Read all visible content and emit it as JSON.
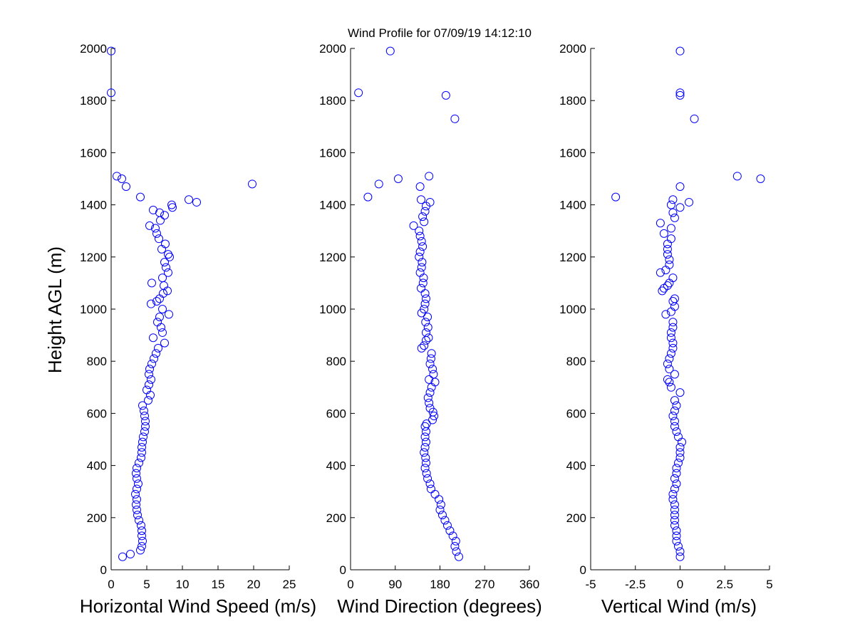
{
  "figure": {
    "title": "Wind Profile for  07/09/19 14:12:10",
    "ylabel": "Height AGL (m)",
    "marker_color": "#0000ff"
  },
  "chart_data": [
    {
      "type": "scatter",
      "id": "speed",
      "title": "Wind Profile for  07/09/19 14:12:10",
      "xlabel": "Horizontal Wind Speed (m/s)",
      "ylabel": "Height AGL (m)",
      "xlim": [
        0,
        25
      ],
      "ylim": [
        0,
        2000
      ],
      "xticks": [
        "0",
        "5",
        "10",
        "15",
        "20",
        "25"
      ],
      "xtick_values": [
        0,
        5,
        10,
        15,
        20,
        25
      ],
      "yticks": [
        "0",
        "200",
        "400",
        "600",
        "800",
        "1000",
        "1200",
        "1400",
        "1600",
        "1800",
        "2000"
      ],
      "ytick_values": [
        0,
        200,
        400,
        600,
        800,
        1000,
        1200,
        1400,
        1600,
        1800,
        2000
      ],
      "grid": false,
      "points": [
        [
          1.6,
          50
        ],
        [
          2.7,
          60
        ],
        [
          4.1,
          75
        ],
        [
          4.3,
          90
        ],
        [
          4.4,
          110
        ],
        [
          4.3,
          130
        ],
        [
          4.3,
          150
        ],
        [
          4.2,
          170
        ],
        [
          3.9,
          190
        ],
        [
          3.7,
          210
        ],
        [
          3.6,
          230
        ],
        [
          3.5,
          250
        ],
        [
          3.6,
          270
        ],
        [
          3.4,
          290
        ],
        [
          3.6,
          310
        ],
        [
          3.8,
          330
        ],
        [
          3.6,
          350
        ],
        [
          3.5,
          370
        ],
        [
          3.6,
          390
        ],
        [
          3.9,
          410
        ],
        [
          4.2,
          430
        ],
        [
          4.3,
          450
        ],
        [
          4.3,
          470
        ],
        [
          4.4,
          490
        ],
        [
          4.5,
          510
        ],
        [
          4.7,
          530
        ],
        [
          4.8,
          550
        ],
        [
          4.8,
          570
        ],
        [
          4.7,
          590
        ],
        [
          4.6,
          610
        ],
        [
          4.4,
          630
        ],
        [
          5.2,
          650
        ],
        [
          5.5,
          670
        ],
        [
          5.0,
          690
        ],
        [
          5.3,
          710
        ],
        [
          5.6,
          730
        ],
        [
          5.3,
          750
        ],
        [
          5.4,
          770
        ],
        [
          5.7,
          790
        ],
        [
          6.0,
          810
        ],
        [
          6.3,
          830
        ],
        [
          6.6,
          850
        ],
        [
          7.5,
          870
        ],
        [
          5.9,
          890
        ],
        [
          7.2,
          910
        ],
        [
          7.0,
          930
        ],
        [
          6.5,
          950
        ],
        [
          6.8,
          970
        ],
        [
          8.1,
          980
        ],
        [
          7.2,
          1000
        ],
        [
          5.6,
          1020
        ],
        [
          6.4,
          1030
        ],
        [
          6.8,
          1040
        ],
        [
          7.3,
          1060
        ],
        [
          7.9,
          1070
        ],
        [
          7.4,
          1090
        ],
        [
          5.7,
          1100
        ],
        [
          7.2,
          1120
        ],
        [
          8.0,
          1140
        ],
        [
          7.7,
          1160
        ],
        [
          7.5,
          1180
        ],
        [
          8.2,
          1200
        ],
        [
          8.0,
          1210
        ],
        [
          7.1,
          1230
        ],
        [
          7.6,
          1250
        ],
        [
          6.7,
          1270
        ],
        [
          6.4,
          1290
        ],
        [
          6.2,
          1310
        ],
        [
          5.4,
          1320
        ],
        [
          6.9,
          1340
        ],
        [
          7.5,
          1360
        ],
        [
          6.8,
          1370
        ],
        [
          5.9,
          1380
        ],
        [
          8.6,
          1390
        ],
        [
          8.5,
          1400
        ],
        [
          12.0,
          1410
        ],
        [
          10.9,
          1420
        ],
        [
          4.1,
          1430
        ],
        [
          19.8,
          1480
        ],
        [
          2.1,
          1470
        ],
        [
          1.5,
          1500
        ],
        [
          0.8,
          1510
        ],
        [
          0.0,
          1830
        ],
        [
          0.0,
          1990
        ]
      ]
    },
    {
      "type": "scatter",
      "id": "direction",
      "xlabel": "Wind Direction (degrees)",
      "ylabel": "",
      "xlim": [
        0,
        360
      ],
      "ylim": [
        0,
        2000
      ],
      "xticks": [
        "0",
        "90",
        "180",
        "270",
        "360"
      ],
      "xtick_values": [
        0,
        90,
        180,
        270,
        360
      ],
      "yticks": [
        "0",
        "200",
        "400",
        "600",
        "800",
        "1000",
        "1200",
        "1400",
        "1600",
        "1800",
        "2000"
      ],
      "ytick_values": [
        0,
        200,
        400,
        600,
        800,
        1000,
        1200,
        1400,
        1600,
        1800,
        2000
      ],
      "grid": false,
      "points": [
        [
          218,
          50
        ],
        [
          213,
          70
        ],
        [
          210,
          90
        ],
        [
          212,
          110
        ],
        [
          206,
          130
        ],
        [
          200,
          150
        ],
        [
          195,
          170
        ],
        [
          190,
          190
        ],
        [
          185,
          210
        ],
        [
          180,
          230
        ],
        [
          182,
          250
        ],
        [
          178,
          270
        ],
        [
          170,
          290
        ],
        [
          162,
          310
        ],
        [
          160,
          330
        ],
        [
          155,
          350
        ],
        [
          153,
          370
        ],
        [
          150,
          390
        ],
        [
          152,
          410
        ],
        [
          151,
          430
        ],
        [
          148,
          450
        ],
        [
          150,
          470
        ],
        [
          152,
          490
        ],
        [
          150,
          510
        ],
        [
          152,
          530
        ],
        [
          150,
          550
        ],
        [
          153,
          560
        ],
        [
          165,
          575
        ],
        [
          168,
          590
        ],
        [
          166,
          605
        ],
        [
          160,
          620
        ],
        [
          158,
          640
        ],
        [
          156,
          660
        ],
        [
          160,
          680
        ],
        [
          163,
          700
        ],
        [
          170,
          720
        ],
        [
          158,
          730
        ],
        [
          167,
          750
        ],
        [
          165,
          770
        ],
        [
          160,
          790
        ],
        [
          162,
          810
        ],
        [
          163,
          830
        ],
        [
          143,
          850
        ],
        [
          148,
          860
        ],
        [
          152,
          880
        ],
        [
          157,
          890
        ],
        [
          152,
          910
        ],
        [
          156,
          930
        ],
        [
          151,
          950
        ],
        [
          155,
          970
        ],
        [
          143,
          985
        ],
        [
          148,
          1000
        ],
        [
          150,
          1020
        ],
        [
          152,
          1040
        ],
        [
          150,
          1060
        ],
        [
          142,
          1080
        ],
        [
          146,
          1100
        ],
        [
          147,
          1120
        ],
        [
          140,
          1140
        ],
        [
          143,
          1160
        ],
        [
          144,
          1180
        ],
        [
          138,
          1200
        ],
        [
          140,
          1220
        ],
        [
          145,
          1240
        ],
        [
          143,
          1260
        ],
        [
          140,
          1280
        ],
        [
          138,
          1300
        ],
        [
          127,
          1320
        ],
        [
          148,
          1335
        ],
        [
          145,
          1355
        ],
        [
          150,
          1375
        ],
        [
          152,
          1395
        ],
        [
          160,
          1410
        ],
        [
          142,
          1420
        ],
        [
          35,
          1430
        ],
        [
          140,
          1470
        ],
        [
          57,
          1480
        ],
        [
          96,
          1500
        ],
        [
          158,
          1510
        ],
        [
          210,
          1730
        ],
        [
          192,
          1820
        ],
        [
          16,
          1830
        ],
        [
          80,
          1990
        ]
      ]
    },
    {
      "type": "scatter",
      "id": "vertical",
      "xlabel": "Vertical Wind (m/s)",
      "ylabel": "",
      "xlim": [
        -5,
        5
      ],
      "ylim": [
        0,
        2000
      ],
      "xticks": [
        "-5",
        "-2.5",
        "0",
        "2.5",
        "5"
      ],
      "xtick_values": [
        -5,
        -2.5,
        0,
        2.5,
        5
      ],
      "yticks": [
        "0",
        "200",
        "400",
        "600",
        "800",
        "1000",
        "1200",
        "1400",
        "1600",
        "1800",
        "2000"
      ],
      "ytick_values": [
        0,
        200,
        400,
        600,
        800,
        1000,
        1200,
        1400,
        1600,
        1800,
        2000
      ],
      "grid": false,
      "points": [
        [
          0.0,
          50
        ],
        [
          0.0,
          70
        ],
        [
          -0.1,
          90
        ],
        [
          -0.2,
          110
        ],
        [
          -0.2,
          130
        ],
        [
          -0.2,
          150
        ],
        [
          -0.3,
          170
        ],
        [
          -0.3,
          190
        ],
        [
          -0.3,
          210
        ],
        [
          -0.3,
          230
        ],
        [
          -0.3,
          250
        ],
        [
          -0.4,
          270
        ],
        [
          -0.4,
          290
        ],
        [
          -0.3,
          310
        ],
        [
          -0.2,
          330
        ],
        [
          -0.3,
          350
        ],
        [
          -0.2,
          370
        ],
        [
          -0.2,
          390
        ],
        [
          -0.1,
          410
        ],
        [
          0.0,
          430
        ],
        [
          0.0,
          450
        ],
        [
          0.0,
          470
        ],
        [
          0.1,
          490
        ],
        [
          -0.1,
          510
        ],
        [
          -0.2,
          530
        ],
        [
          -0.3,
          550
        ],
        [
          -0.3,
          570
        ],
        [
          -0.4,
          590
        ],
        [
          -0.3,
          610
        ],
        [
          -0.2,
          630
        ],
        [
          -0.3,
          650
        ],
        [
          0.0,
          680
        ],
        [
          -0.5,
          700
        ],
        [
          -0.6,
          720
        ],
        [
          -0.7,
          730
        ],
        [
          -0.3,
          750
        ],
        [
          -0.6,
          770
        ],
        [
          -0.7,
          790
        ],
        [
          -0.6,
          810
        ],
        [
          -0.5,
          830
        ],
        [
          -0.4,
          850
        ],
        [
          -0.4,
          870
        ],
        [
          -0.5,
          890
        ],
        [
          -0.5,
          910
        ],
        [
          -0.4,
          930
        ],
        [
          -0.4,
          950
        ],
        [
          -0.8,
          980
        ],
        [
          -0.5,
          990
        ],
        [
          -0.3,
          1010
        ],
        [
          -0.4,
          1030
        ],
        [
          -0.3,
          1040
        ],
        [
          -1.0,
          1070
        ],
        [
          -0.9,
          1080
        ],
        [
          -0.7,
          1090
        ],
        [
          -0.6,
          1100
        ],
        [
          -0.4,
          1120
        ],
        [
          -1.1,
          1140
        ],
        [
          -0.8,
          1150
        ],
        [
          -0.6,
          1170
        ],
        [
          -0.6,
          1190
        ],
        [
          -0.7,
          1210
        ],
        [
          -0.7,
          1230
        ],
        [
          -0.7,
          1250
        ],
        [
          -0.5,
          1270
        ],
        [
          -0.9,
          1290
        ],
        [
          -0.5,
          1310
        ],
        [
          -1.1,
          1330
        ],
        [
          -0.3,
          1350
        ],
        [
          -0.4,
          1370
        ],
        [
          0.0,
          1390
        ],
        [
          -0.5,
          1400
        ],
        [
          0.5,
          1410
        ],
        [
          -0.4,
          1420
        ],
        [
          -3.6,
          1430
        ],
        [
          0.0,
          1470
        ],
        [
          4.5,
          1500
        ],
        [
          3.2,
          1510
        ],
        [
          0.8,
          1730
        ],
        [
          0.0,
          1820
        ],
        [
          0.0,
          1830
        ],
        [
          0.0,
          1990
        ]
      ]
    }
  ]
}
